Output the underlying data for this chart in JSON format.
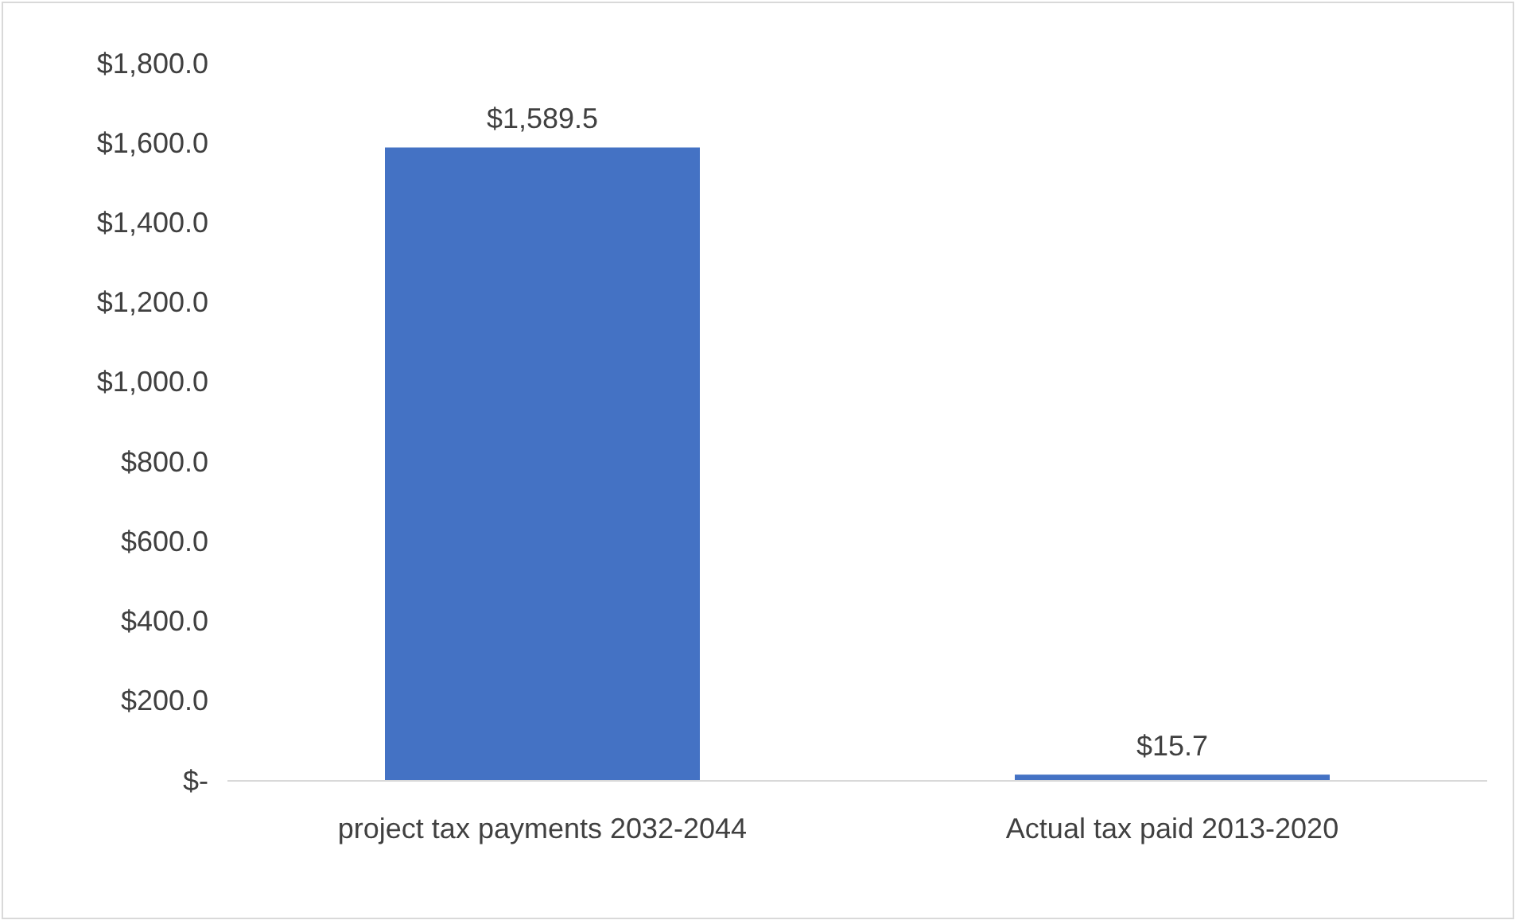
{
  "chart_data": {
    "type": "bar",
    "categories": [
      "project tax payments 2032-2044",
      "Actual tax paid 2013-2020"
    ],
    "values": [
      1589.5,
      15.7
    ],
    "color": "#4472c4",
    "value_labels": [
      "$1,589.5",
      "$15.7"
    ],
    "ylim": [
      0,
      1800
    ],
    "yticks": [
      {
        "value": 0,
        "label": "$-"
      },
      {
        "value": 200,
        "label": "$200.0"
      },
      {
        "value": 400,
        "label": "$400.0"
      },
      {
        "value": 600,
        "label": "$600.0"
      },
      {
        "value": 800,
        "label": "$800.0"
      },
      {
        "value": 1000,
        "label": "$1,000.0"
      },
      {
        "value": 1200,
        "label": "$1,200.0"
      },
      {
        "value": 1400,
        "label": "$1,400.0"
      },
      {
        "value": 1600,
        "label": "$1,600.0"
      },
      {
        "value": 1800,
        "label": "$1,800.0"
      }
    ],
    "grid": false
  }
}
